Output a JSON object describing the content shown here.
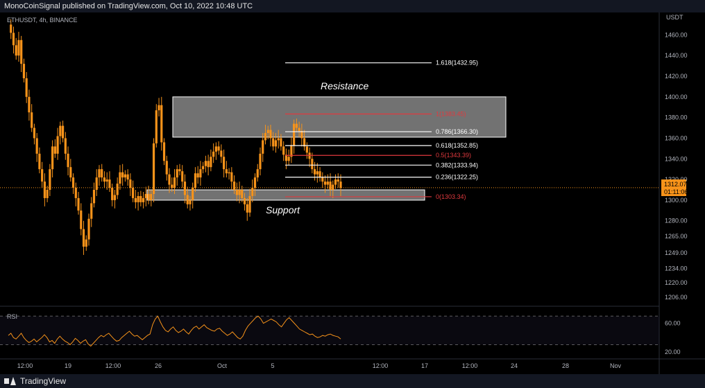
{
  "header": {
    "published_by": "MonoCoinSignal published on TradingView.com, Oct 10, 2022 10:48 UTC"
  },
  "footer": {
    "brand": "TradingView"
  },
  "colors": {
    "candle": "#f7931a",
    "rsi": "#f7931a",
    "fib_white": "#ffffff",
    "fib_red": "#e0393e",
    "zone": "#b3b3b3",
    "background": "#000000"
  },
  "chart_data": {
    "type": "line",
    "symbol_label": "ETHUSDT, 4h, BINANCE",
    "currency": "USDT",
    "price_axis": {
      "ticks": [
        "1460.00",
        "1440.00",
        "1420.00",
        "1400.00",
        "1380.00",
        "1360.00",
        "1340.00",
        "1320.00",
        "1300.00",
        "1280.00",
        "1265.00",
        "1249.00",
        "1234.00",
        "1220.00",
        "1206.00"
      ],
      "range": [
        1200,
        1475
      ]
    },
    "time_axis": {
      "ticks": [
        "12:00",
        "19",
        "12:00",
        "26",
        "Oct",
        "5",
        "12:00",
        "17",
        "12:00",
        "24",
        "28",
        "Nov"
      ]
    },
    "last_price": {
      "value": "1312.07",
      "countdown": "01:11:06"
    },
    "fib_levels": [
      {
        "label": "1.618(1432.95)",
        "value": 1432.95,
        "color": "white"
      },
      {
        "label": "1(1383.45)",
        "value": 1383.45,
        "color": "red"
      },
      {
        "label": "0.786(1366.30)",
        "value": 1366.3,
        "color": "white"
      },
      {
        "label": "0.618(1352.85)",
        "value": 1352.85,
        "color": "white"
      },
      {
        "label": "0.5(1343.39)",
        "value": 1343.39,
        "color": "red"
      },
      {
        "label": "0.382(1333.94)",
        "value": 1333.94,
        "color": "white"
      },
      {
        "label": "0.236(1322.25)",
        "value": 1322.25,
        "color": "white"
      },
      {
        "label": "0(1303.34)",
        "value": 1303.34,
        "color": "red"
      }
    ],
    "zones": [
      {
        "label": "Resistance",
        "low": 1361,
        "high": 1400
      },
      {
        "label": "Support",
        "low": 1300,
        "high": 1310
      }
    ],
    "price_series": {
      "name": "",
      "values": [
        1470,
        1462,
        1450,
        1440,
        1455,
        1432,
        1418,
        1400,
        1385,
        1370,
        1360,
        1345,
        1330,
        1318,
        1302,
        1310,
        1330,
        1352,
        1345,
        1362,
        1372,
        1360,
        1345,
        1332,
        1322,
        1312,
        1302,
        1290,
        1272,
        1255,
        1262,
        1282,
        1297,
        1310,
        1322,
        1330,
        1322,
        1318,
        1320,
        1312,
        1300,
        1305,
        1316,
        1327,
        1322,
        1325,
        1320,
        1312,
        1302,
        1298,
        1304,
        1298,
        1302,
        1306,
        1300,
        1306,
        1355,
        1387,
        1392,
        1356,
        1338,
        1325,
        1315,
        1312,
        1322,
        1330,
        1328,
        1318,
        1305,
        1296,
        1300,
        1312,
        1326,
        1322,
        1330,
        1333,
        1338,
        1332,
        1342,
        1347,
        1352,
        1348,
        1342,
        1330,
        1326,
        1327,
        1318,
        1310,
        1305,
        1310,
        1302,
        1296,
        1288,
        1304,
        1312,
        1322,
        1330,
        1345,
        1358,
        1365,
        1368,
        1360,
        1352,
        1358,
        1360,
        1352,
        1344,
        1338,
        1342,
        1353,
        1374,
        1370,
        1367,
        1360,
        1352,
        1346,
        1340,
        1330,
        1325,
        1328,
        1322,
        1318,
        1315,
        1318,
        1310,
        1315,
        1320,
        1318,
        1312
      ]
    },
    "rsi": {
      "label": "RSI",
      "ticks": [
        "60.00",
        "20.00"
      ],
      "upper_band": 70,
      "lower_band": 30,
      "range": [
        15,
        80
      ],
      "values": [
        43,
        46,
        40,
        38,
        42,
        46,
        40,
        36,
        33,
        35,
        38,
        34,
        37,
        40,
        44,
        40,
        34,
        36,
        32,
        38,
        42,
        38,
        35,
        33,
        30,
        34,
        39,
        36,
        32,
        35,
        37,
        31,
        28,
        32,
        36,
        40,
        43,
        41,
        44,
        46,
        42,
        38,
        35,
        36,
        40,
        43,
        46,
        49,
        45,
        42,
        43,
        40,
        37,
        40,
        43,
        45,
        58,
        66,
        70,
        62,
        55,
        50,
        48,
        52,
        55,
        50,
        47,
        49,
        52,
        48,
        45,
        50,
        54,
        56,
        52,
        55,
        58,
        54,
        52,
        50,
        49,
        52,
        53,
        49,
        46,
        43,
        45,
        48,
        44,
        40,
        38,
        42,
        50,
        56,
        60,
        64,
        68,
        70,
        66,
        60,
        62,
        64,
        66,
        64,
        62,
        58,
        55,
        60,
        65,
        68,
        64,
        60,
        56,
        52,
        50,
        48,
        46,
        44,
        45,
        42,
        40,
        41,
        43,
        42,
        44,
        45,
        43,
        42,
        41,
        38
      ]
    }
  },
  "annotations": {
    "resistance": "Resistance",
    "support": "Support"
  }
}
